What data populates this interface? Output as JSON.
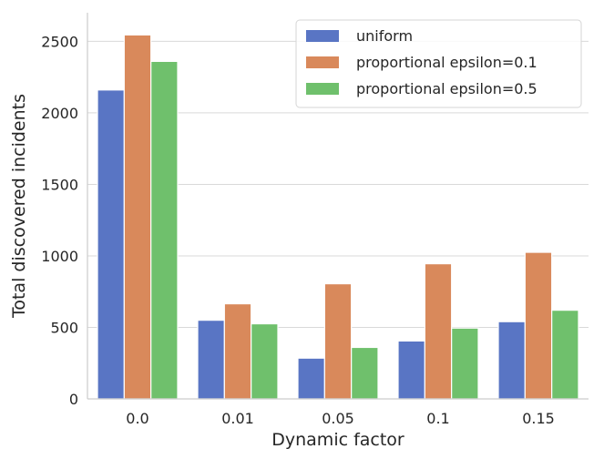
{
  "chart_data": {
    "type": "bar",
    "title": "",
    "xlabel": "Dynamic factor",
    "ylabel": "Total discovered incidents",
    "categories": [
      "0.0",
      "0.01",
      "0.05",
      "0.1",
      "0.15"
    ],
    "ylim": [
      0,
      2700
    ],
    "yticks": [
      0,
      500,
      1000,
      1500,
      2000,
      2500
    ],
    "ytick_labels": [
      "0",
      "500",
      "1000",
      "1500",
      "2000",
      "2500"
    ],
    "grid": "horizontal",
    "legend_position": "top-right",
    "series": [
      {
        "name": "uniform",
        "color": "#5975c4",
        "values": [
          2160,
          550,
          285,
          405,
          540
        ]
      },
      {
        "name": "proportional epsilon=0.1",
        "color": "#d9895b",
        "values": [
          2545,
          665,
          805,
          945,
          1025
        ]
      },
      {
        "name": "proportional epsilon=0.5",
        "color": "#6fc06c",
        "values": [
          2360,
          525,
          360,
          495,
          620
        ]
      }
    ]
  }
}
